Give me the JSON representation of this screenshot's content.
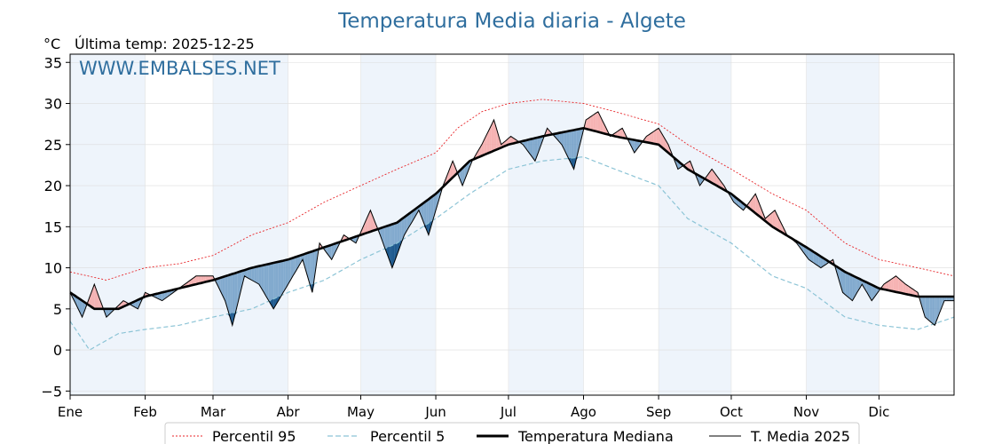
{
  "chart_data": {
    "type": "line",
    "title": "Temperatura Media diaria - Algete",
    "unit_label": "°C",
    "subtitle": "Última temp: 2025-12-25",
    "watermark": "WWW.EMBALSES.NET",
    "ylim": [
      -5.5,
      36
    ],
    "yticks": [
      -5,
      0,
      5,
      10,
      15,
      20,
      25,
      30,
      35
    ],
    "xlim_days": [
      0,
      365
    ],
    "months": [
      "Ene",
      "Feb",
      "Mar",
      "Abr",
      "May",
      "Jun",
      "Jul",
      "Ago",
      "Sep",
      "Oct",
      "Nov",
      "Dic"
    ],
    "month_start_days": [
      0,
      31,
      59,
      90,
      120,
      151,
      181,
      212,
      243,
      273,
      304,
      334
    ],
    "grid": true,
    "legend_position": "bottom-center",
    "colors": {
      "p95": "#e8262a",
      "p5": "#8cc4d6",
      "median": "#000000",
      "current": "#000000",
      "above_fill": "#f4a6a6",
      "above_fill_strong": "#e8474a",
      "below_fill": "#6f9cc5",
      "below_fill_strong": "#1f5a8e",
      "band_shade": "#eef4fb"
    },
    "series": [
      {
        "name": "Percentil 95",
        "style": "dotted",
        "keypoints": [
          [
            0,
            9.5
          ],
          [
            15,
            8.5
          ],
          [
            31,
            10
          ],
          [
            45,
            10.5
          ],
          [
            59,
            11.5
          ],
          [
            75,
            14
          ],
          [
            90,
            15.5
          ],
          [
            105,
            18
          ],
          [
            120,
            20
          ],
          [
            135,
            22
          ],
          [
            151,
            24
          ],
          [
            160,
            27
          ],
          [
            170,
            29
          ],
          [
            181,
            30
          ],
          [
            195,
            30.5
          ],
          [
            212,
            30
          ],
          [
            225,
            29
          ],
          [
            243,
            27.5
          ],
          [
            255,
            25
          ],
          [
            273,
            22
          ],
          [
            290,
            19
          ],
          [
            304,
            17
          ],
          [
            320,
            13
          ],
          [
            334,
            11
          ],
          [
            350,
            10
          ],
          [
            365,
            9
          ]
        ]
      },
      {
        "name": "Percentil 5",
        "style": "dashed",
        "keypoints": [
          [
            0,
            3.5
          ],
          [
            8,
            0
          ],
          [
            20,
            2
          ],
          [
            31,
            2.5
          ],
          [
            45,
            3
          ],
          [
            59,
            4
          ],
          [
            75,
            5
          ],
          [
            90,
            7
          ],
          [
            105,
            8.5
          ],
          [
            120,
            11
          ],
          [
            135,
            13
          ],
          [
            151,
            16
          ],
          [
            165,
            19
          ],
          [
            181,
            22
          ],
          [
            195,
            23
          ],
          [
            212,
            23.5
          ],
          [
            225,
            22
          ],
          [
            243,
            20
          ],
          [
            255,
            16
          ],
          [
            273,
            13
          ],
          [
            290,
            9
          ],
          [
            304,
            7.5
          ],
          [
            320,
            4
          ],
          [
            334,
            3
          ],
          [
            350,
            2.5
          ],
          [
            365,
            4
          ]
        ]
      },
      {
        "name": "Temperatura Mediana",
        "style": "solid-thick",
        "keypoints": [
          [
            0,
            7
          ],
          [
            10,
            5
          ],
          [
            20,
            5
          ],
          [
            31,
            6.5
          ],
          [
            45,
            7.5
          ],
          [
            59,
            8.5
          ],
          [
            75,
            10
          ],
          [
            90,
            11
          ],
          [
            105,
            12.5
          ],
          [
            120,
            14
          ],
          [
            135,
            15.5
          ],
          [
            151,
            19
          ],
          [
            165,
            23
          ],
          [
            181,
            25
          ],
          [
            195,
            26
          ],
          [
            212,
            27
          ],
          [
            225,
            26
          ],
          [
            243,
            25
          ],
          [
            255,
            22
          ],
          [
            273,
            19
          ],
          [
            290,
            15
          ],
          [
            304,
            12.5
          ],
          [
            320,
            9.5
          ],
          [
            334,
            7.5
          ],
          [
            350,
            6.5
          ],
          [
            365,
            6.5
          ]
        ]
      },
      {
        "name": "T. Media 2025",
        "style": "solid-thin",
        "keypoints": [
          [
            0,
            7
          ],
          [
            5,
            4
          ],
          [
            10,
            8
          ],
          [
            15,
            4
          ],
          [
            22,
            6
          ],
          [
            28,
            5
          ],
          [
            31,
            7
          ],
          [
            38,
            6
          ],
          [
            45,
            7.5
          ],
          [
            52,
            9
          ],
          [
            59,
            9
          ],
          [
            64,
            6
          ],
          [
            67,
            3
          ],
          [
            72,
            9
          ],
          [
            78,
            8
          ],
          [
            84,
            5
          ],
          [
            90,
            8
          ],
          [
            96,
            11
          ],
          [
            100,
            7
          ],
          [
            103,
            13
          ],
          [
            108,
            11
          ],
          [
            113,
            14
          ],
          [
            118,
            13
          ],
          [
            124,
            17
          ],
          [
            128,
            14
          ],
          [
            133,
            10
          ],
          [
            138,
            14
          ],
          [
            144,
            17
          ],
          [
            148,
            14
          ],
          [
            154,
            20
          ],
          [
            158,
            23
          ],
          [
            162,
            20
          ],
          [
            166,
            23
          ],
          [
            170,
            25
          ],
          [
            175,
            28
          ],
          [
            178,
            25
          ],
          [
            182,
            26
          ],
          [
            187,
            25
          ],
          [
            192,
            23
          ],
          [
            197,
            27
          ],
          [
            203,
            25
          ],
          [
            208,
            22
          ],
          [
            213,
            28
          ],
          [
            218,
            29
          ],
          [
            223,
            26
          ],
          [
            228,
            27
          ],
          [
            233,
            24
          ],
          [
            238,
            26
          ],
          [
            243,
            27
          ],
          [
            247,
            25
          ],
          [
            251,
            22
          ],
          [
            256,
            23
          ],
          [
            260,
            20
          ],
          [
            265,
            22
          ],
          [
            270,
            20
          ],
          [
            274,
            18
          ],
          [
            278,
            17
          ],
          [
            283,
            19
          ],
          [
            287,
            16
          ],
          [
            291,
            17
          ],
          [
            296,
            14
          ],
          [
            300,
            13
          ],
          [
            305,
            11
          ],
          [
            310,
            10
          ],
          [
            315,
            11
          ],
          [
            319,
            7
          ],
          [
            323,
            6
          ],
          [
            327,
            8
          ],
          [
            331,
            6
          ],
          [
            336,
            8
          ],
          [
            341,
            9
          ],
          [
            345,
            8
          ],
          [
            350,
            7
          ],
          [
            353,
            4
          ],
          [
            357,
            3
          ],
          [
            361,
            6
          ],
          [
            365,
            6
          ]
        ]
      }
    ]
  }
}
